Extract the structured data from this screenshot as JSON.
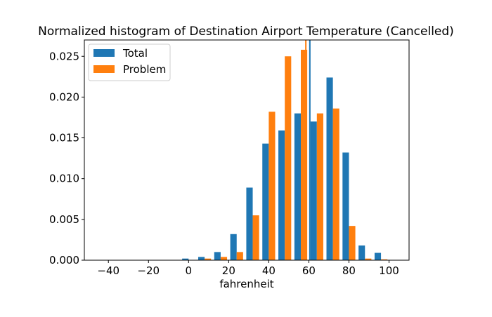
{
  "chart_data": {
    "type": "bar",
    "title": "Normalized histogram of Destination Airport Temperature (Cancelled)",
    "xlabel": "fahrenheit",
    "ylabel": "",
    "xlim": [
      -52,
      110
    ],
    "ylim": [
      0,
      0.027
    ],
    "xticks": [
      -40,
      -20,
      0,
      20,
      40,
      60,
      80,
      100
    ],
    "xtick_labels": [
      "−40",
      "−20",
      "0",
      "20",
      "40",
      "60",
      "80",
      "100"
    ],
    "yticks": [
      0.0,
      0.005,
      0.01,
      0.015,
      0.02,
      0.025
    ],
    "ytick_labels": [
      "0.000",
      "0.005",
      "0.010",
      "0.015",
      "0.020",
      "0.025"
    ],
    "bin_edges": [
      -52,
      -44,
      -36,
      -28,
      -20,
      -12,
      -4,
      4,
      12,
      20,
      28,
      36,
      44,
      52,
      60,
      68,
      76,
      84,
      92,
      100,
      108
    ],
    "grid": false,
    "legend_position": "top-left",
    "series": [
      {
        "name": "Total",
        "color": "#1f77b4",
        "values": [
          0,
          0,
          0,
          0,
          0,
          0,
          0.0002,
          0.0004,
          0.001,
          0.0032,
          0.0089,
          0.0143,
          0.0159,
          0.018,
          0.017,
          0.0224,
          0.0132,
          0.0018,
          0.0009,
          0
        ],
        "mean": 60.5
      },
      {
        "name": "Problem",
        "color": "#ff7f0e",
        "values": [
          0,
          0,
          0,
          0,
          0,
          0,
          0,
          0.0002,
          0.0004,
          0.001,
          0.0055,
          0.0182,
          0.025,
          0.0258,
          0.018,
          0.0186,
          0.0042,
          0.0002,
          0.0001,
          0
        ],
        "mean": 58.5
      }
    ]
  }
}
